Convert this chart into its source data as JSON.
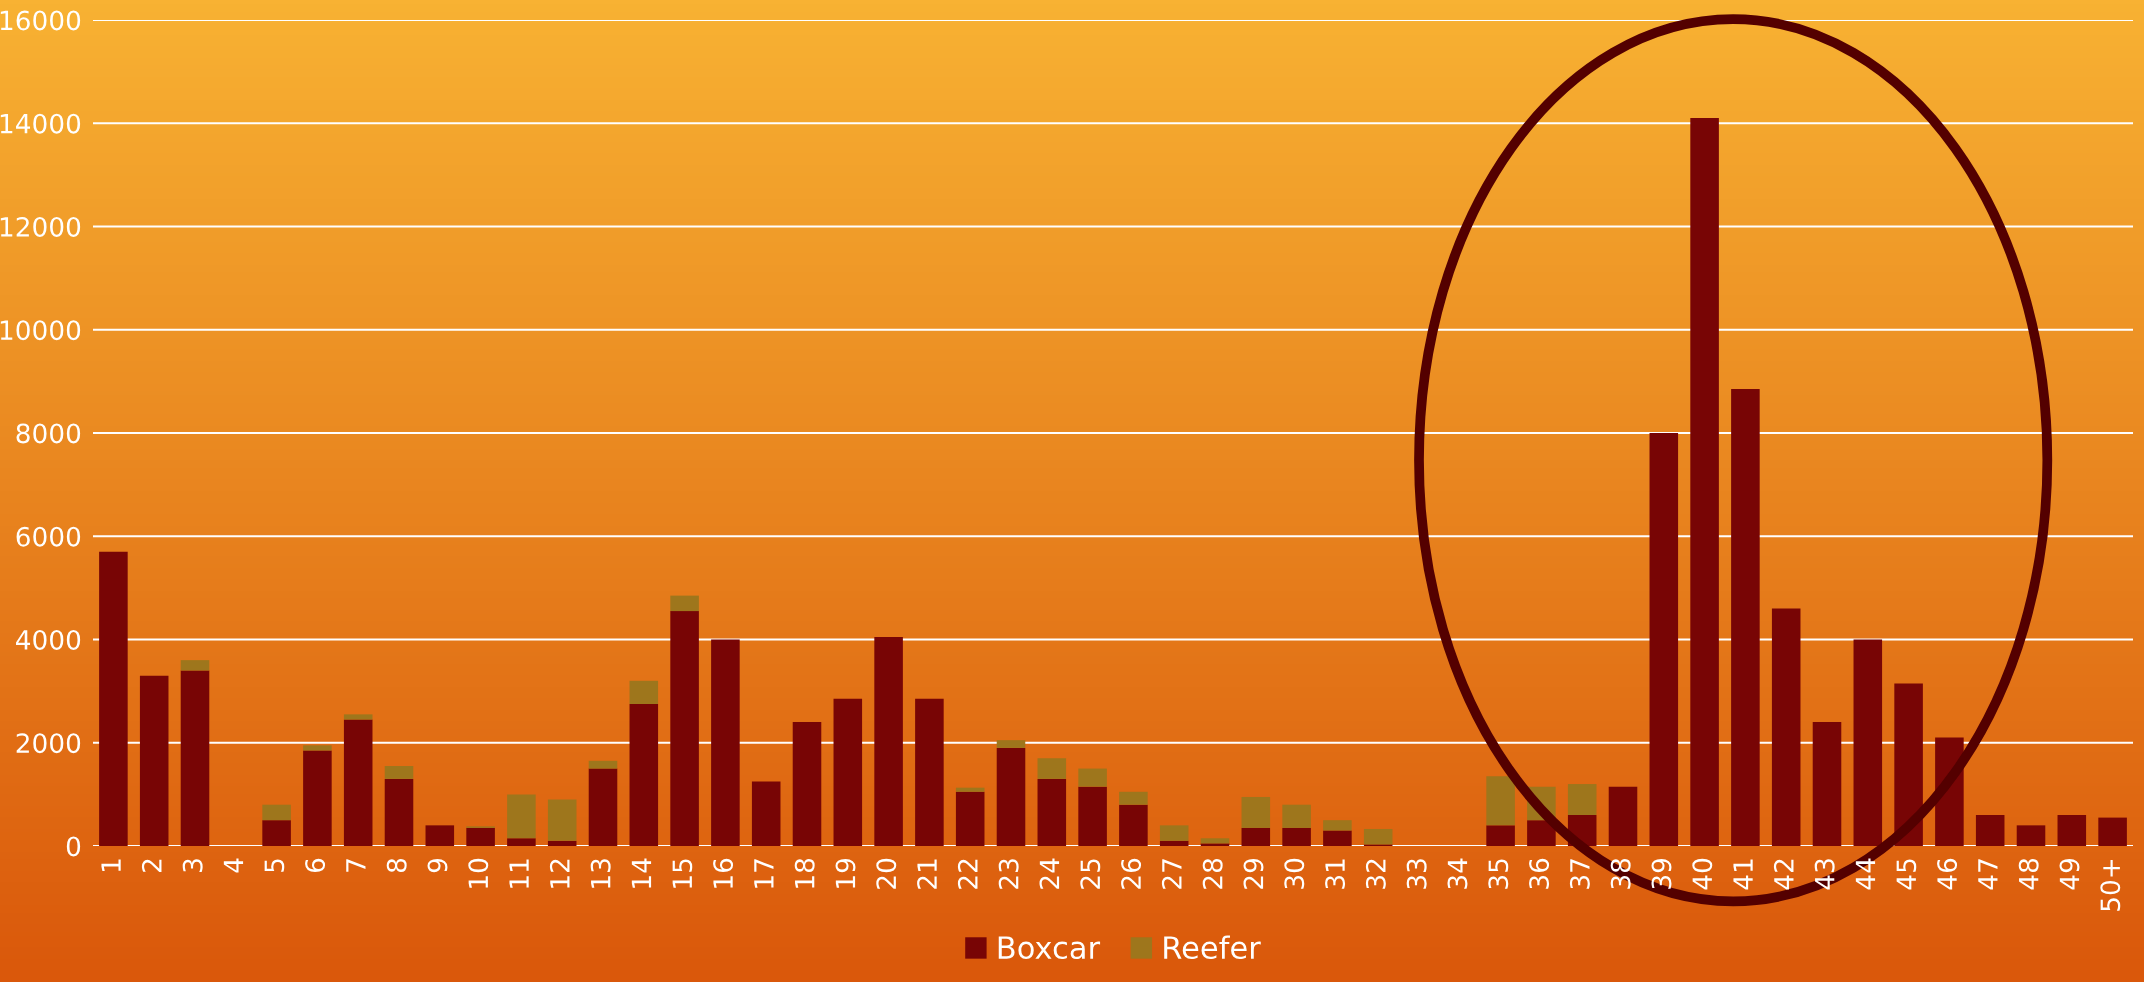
{
  "chart_data": {
    "type": "bar",
    "stacked": true,
    "categories": [
      "1",
      "2",
      "3",
      "4",
      "5",
      "6",
      "7",
      "8",
      "9",
      "10",
      "11",
      "12",
      "13",
      "14",
      "15",
      "16",
      "17",
      "18",
      "19",
      "20",
      "21",
      "22",
      "23",
      "24",
      "25",
      "26",
      "27",
      "28",
      "29",
      "30",
      "31",
      "32",
      "33",
      "34",
      "35",
      "36",
      "37",
      "38",
      "39",
      "40",
      "41",
      "42",
      "43",
      "44",
      "45",
      "46",
      "47",
      "48",
      "49",
      "50+"
    ],
    "series": [
      {
        "name": "Boxcar",
        "color": "#780505",
        "values": [
          5700,
          3300,
          3400,
          0,
          500,
          1850,
          2450,
          1300,
          400,
          350,
          150,
          100,
          1500,
          2750,
          4550,
          4000,
          1250,
          2400,
          2850,
          4050,
          2850,
          1050,
          1900,
          1300,
          1150,
          800,
          100,
          50,
          350,
          350,
          300,
          30,
          0,
          0,
          400,
          500,
          600,
          1150,
          8000,
          14100,
          8850,
          4600,
          2400,
          4000,
          3150,
          2100,
          600,
          400,
          600,
          550
        ]
      },
      {
        "name": "Reefer",
        "color": "#9e761c",
        "values": [
          0,
          0,
          200,
          0,
          300,
          100,
          100,
          250,
          0,
          30,
          850,
          800,
          150,
          450,
          300,
          0,
          0,
          0,
          0,
          0,
          0,
          80,
          150,
          400,
          350,
          250,
          300,
          100,
          600,
          450,
          200,
          300,
          0,
          0,
          950,
          650,
          600,
          0,
          0,
          0,
          0,
          0,
          0,
          0,
          0,
          0,
          0,
          0,
          0,
          0
        ]
      }
    ],
    "ylim": [
      0,
      16000
    ],
    "yticks": [
      0,
      2000,
      4000,
      6000,
      8000,
      10000,
      12000,
      14000,
      16000
    ],
    "grid": "y",
    "legend": "bottom"
  }
}
